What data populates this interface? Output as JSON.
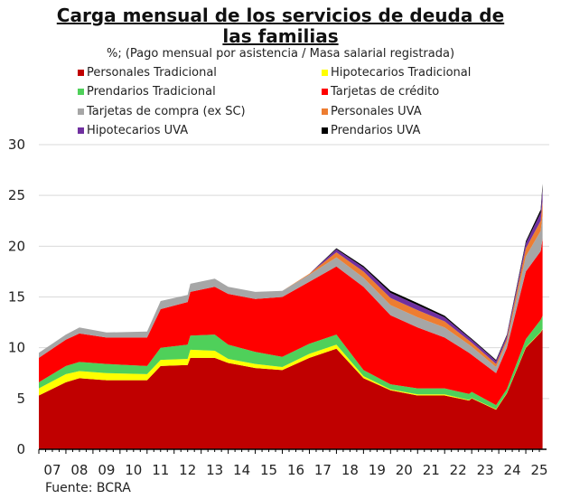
{
  "chart_data": {
    "type": "area",
    "stacked": true,
    "title": "Carga mensual de los servicios de deuda de las familias",
    "title_lines": [
      "Carga mensual de los servicios de deuda de",
      "las familias"
    ],
    "subtitle": "%; (Pago mensual por asistencia / Masa salarial registrada)",
    "source": "Fuente: BCRA",
    "ylim": [
      0,
      30
    ],
    "yticks": [
      "0",
      "5",
      "10",
      "15",
      "20",
      "25",
      "30"
    ],
    "xticks": [
      "07",
      "08",
      "09",
      "10",
      "11",
      "12",
      "13",
      "14",
      "15",
      "16",
      "17",
      "18",
      "19",
      "20",
      "21",
      "22",
      "23",
      "24",
      "25"
    ],
    "grid": true,
    "legend_placement": "top",
    "x": [
      2007.0,
      2008.0,
      2008.5,
      2009.5,
      2011.0,
      2011.5,
      2012.5,
      2012.6,
      2013.5,
      2014.0,
      2015.0,
      2016.0,
      2017.0,
      2018.0,
      2019.0,
      2020.0,
      2021.0,
      2022.0,
      2022.9,
      2023.0,
      2023.9,
      2024.3,
      2025.0,
      2025.55,
      2025.62
    ],
    "series": [
      {
        "name": "Personales Tradicional",
        "color": "#c00000",
        "values": [
          5.3,
          6.6,
          7.0,
          6.8,
          6.8,
          8.2,
          8.3,
          9.0,
          9.0,
          8.5,
          8.0,
          7.8,
          9.0,
          9.9,
          7.0,
          5.8,
          5.3,
          5.3,
          4.8,
          5.0,
          3.9,
          5.5,
          10.0,
          11.5,
          11.8
        ]
      },
      {
        "name": "Hipotecarios Tradicional",
        "color": "#ffff00",
        "values": [
          0.7,
          0.8,
          0.7,
          0.7,
          0.6,
          0.6,
          0.6,
          0.8,
          0.7,
          0.4,
          0.4,
          0.3,
          0.4,
          0.4,
          0.2,
          0.1,
          0.1,
          0.1,
          0.05,
          0.05,
          0.05,
          0.05,
          0.05,
          0.05,
          0.05
        ]
      },
      {
        "name": "Prendarios Tradicional",
        "color": "#4fd05a",
        "values": [
          0.6,
          0.8,
          0.9,
          0.9,
          0.8,
          1.2,
          1.4,
          1.4,
          1.6,
          1.4,
          1.2,
          1.0,
          1.0,
          1.0,
          0.6,
          0.5,
          0.6,
          0.6,
          0.6,
          0.6,
          0.4,
          0.4,
          0.8,
          1.2,
          1.3
        ]
      },
      {
        "name": "Tarjetas de crédito",
        "color": "#ff0000",
        "values": [
          2.4,
          2.6,
          2.8,
          2.6,
          2.8,
          3.8,
          4.2,
          4.3,
          4.7,
          5.0,
          5.2,
          5.9,
          6.1,
          6.7,
          8.2,
          6.8,
          6.0,
          5.0,
          4.05,
          3.65,
          3.15,
          4.05,
          6.65,
          6.75,
          7.6
        ]
      },
      {
        "name": "Tarjetas de compra (ex SC)",
        "color": "#a6a6a6",
        "values": [
          0.5,
          0.5,
          0.6,
          0.5,
          0.6,
          0.8,
          0.7,
          0.8,
          0.8,
          0.7,
          0.7,
          0.6,
          0.7,
          0.9,
          0.9,
          1.0,
          1.0,
          1.0,
          0.8,
          0.8,
          0.6,
          0.6,
          1.5,
          2.0,
          2.3
        ]
      },
      {
        "name": "Personales UVA",
        "color": "#ed7d31",
        "values": [
          0,
          0,
          0,
          0,
          0,
          0,
          0,
          0,
          0,
          0,
          0,
          0,
          0.1,
          0.5,
          0.6,
          0.7,
          0.7,
          0.6,
          0.4,
          0.4,
          0.3,
          0.3,
          0.8,
          1.0,
          1.4
        ]
      },
      {
        "name": "Hipotecarios UVA",
        "color": "#7030a0",
        "values": [
          0,
          0,
          0,
          0,
          0,
          0,
          0,
          0,
          0,
          0,
          0,
          0,
          0,
          0.3,
          0.4,
          0.5,
          0.5,
          0.4,
          0.3,
          0.3,
          0.3,
          0.3,
          0.5,
          0.8,
          1.2
        ]
      },
      {
        "name": "Prendarios UVA",
        "color": "#000000",
        "values": [
          0,
          0,
          0,
          0,
          0,
          0,
          0,
          0,
          0,
          0,
          0,
          0,
          0,
          0.1,
          0.15,
          0.2,
          0.2,
          0.15,
          0.1,
          0.1,
          0.1,
          0.1,
          0.2,
          0.3,
          0.5
        ]
      }
    ]
  }
}
